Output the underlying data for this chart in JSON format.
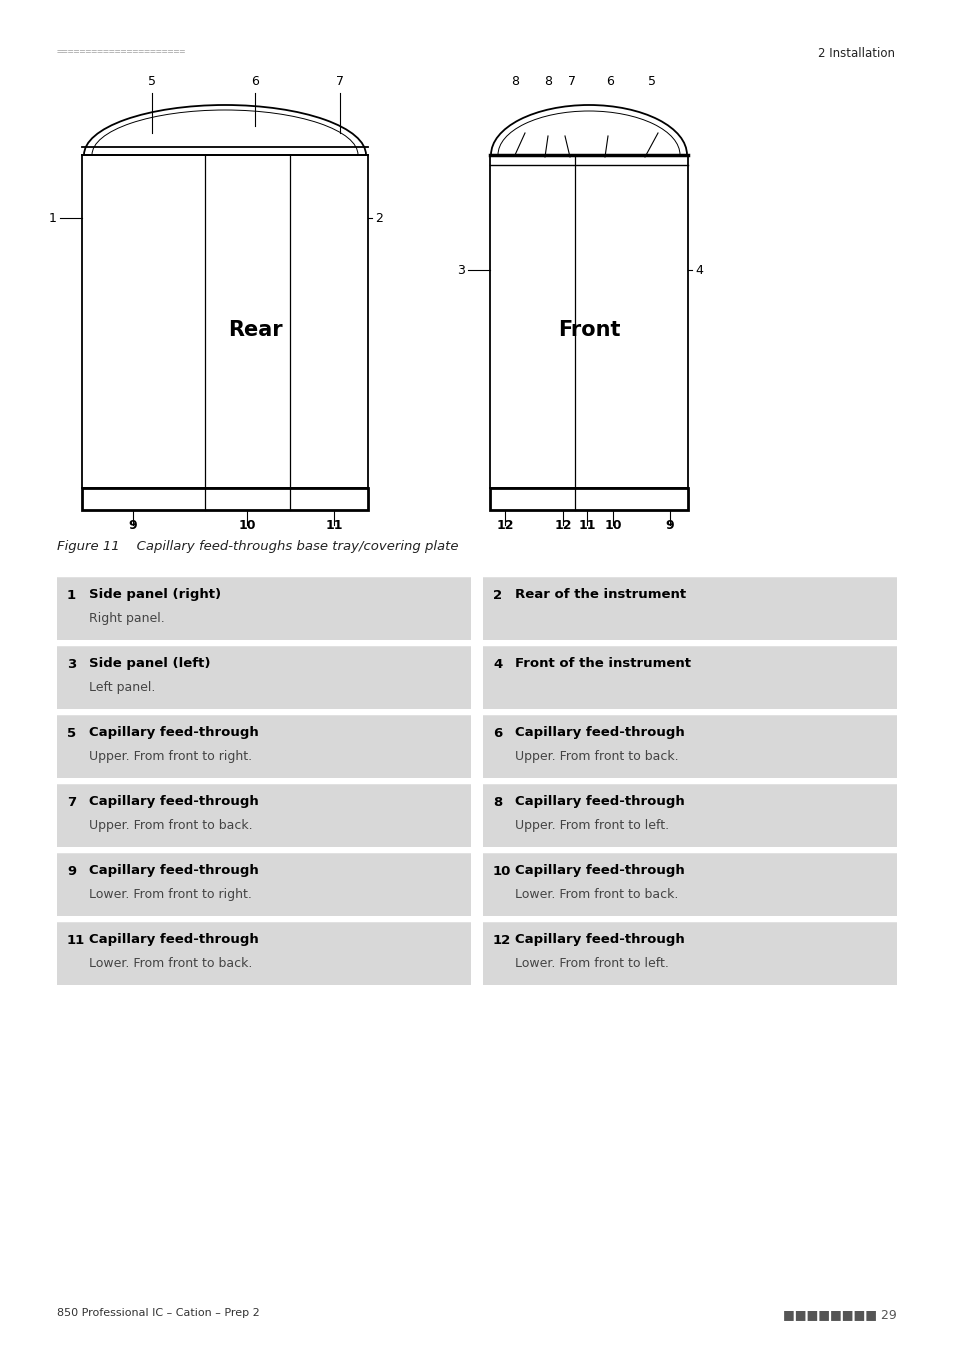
{
  "header_dots": "======================",
  "header_right": "2 Installation",
  "figure_caption": "Figure 11    Capillary feed-throughs base tray/covering plate",
  "footer_left": "850 Professional IC – Cation – Prep 2",
  "footer_right": "■■■■■■■■ 29",
  "table_bg": "#d9d9d9",
  "table_entries": [
    {
      "num": "1",
      "title": "Side panel (right)",
      "desc": "Right panel."
    },
    {
      "num": "2",
      "title": "Rear of the instrument",
      "desc": ""
    },
    {
      "num": "3",
      "title": "Side panel (left)",
      "desc": "Left panel."
    },
    {
      "num": "4",
      "title": "Front of the instrument",
      "desc": ""
    },
    {
      "num": "5",
      "title": "Capillary feed-through",
      "desc": "Upper. From front to right."
    },
    {
      "num": "6",
      "title": "Capillary feed-through",
      "desc": "Upper. From front to back."
    },
    {
      "num": "7",
      "title": "Capillary feed-through",
      "desc": "Upper. From front to back."
    },
    {
      "num": "8",
      "title": "Capillary feed-through",
      "desc": "Upper. From front to left."
    },
    {
      "num": "9",
      "title": "Capillary feed-through",
      "desc": "Lower. From front to right."
    },
    {
      "num": "10",
      "title": "Capillary feed-through",
      "desc": "Lower. From front to back."
    },
    {
      "num": "11",
      "title": "Capillary feed-through",
      "desc": "Lower. From front to back."
    },
    {
      "num": "12",
      "title": "Capillary feed-through",
      "desc": "Lower. From front to left."
    }
  ]
}
